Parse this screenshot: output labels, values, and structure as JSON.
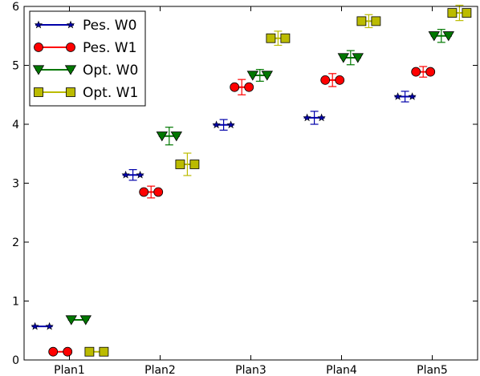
{
  "chart_data": {
    "type": "scatter",
    "categories": [
      "Plan1",
      "Plan2",
      "Plan3",
      "Plan4",
      "Plan5"
    ],
    "ylim": [
      0,
      6
    ],
    "yticks": [
      "0",
      "1",
      "2",
      "3",
      "4",
      "5",
      "6"
    ],
    "grid": false,
    "legend_position": "top-left",
    "series": [
      {
        "name": "Pes. W0",
        "color": "#0000aa",
        "marker": "star",
        "offset": -0.3,
        "values": [
          0.57,
          3.14,
          3.99,
          4.11,
          4.47
        ],
        "err": [
          0.0,
          0.09,
          0.09,
          0.11,
          0.09
        ]
      },
      {
        "name": "Pes. W1",
        "color": "#ff0000",
        "marker": "circle",
        "offset": -0.1,
        "values": [
          0.14,
          2.85,
          4.63,
          4.75,
          4.89
        ],
        "err": [
          0.0,
          0.1,
          0.13,
          0.11,
          0.09
        ]
      },
      {
        "name": "Opt. W0",
        "color": "#007700",
        "marker": "triangle-down",
        "offset": 0.1,
        "values": [
          0.68,
          3.8,
          4.83,
          5.13,
          5.5
        ],
        "err": [
          0.0,
          0.15,
          0.1,
          0.12,
          0.11
        ]
      },
      {
        "name": "Opt. W1",
        "color": "#bbbb00",
        "marker": "square",
        "offset": 0.3,
        "values": [
          0.14,
          3.32,
          5.46,
          5.75,
          5.89
        ],
        "err": [
          0.0,
          0.19,
          0.12,
          0.11,
          0.13
        ]
      }
    ]
  }
}
